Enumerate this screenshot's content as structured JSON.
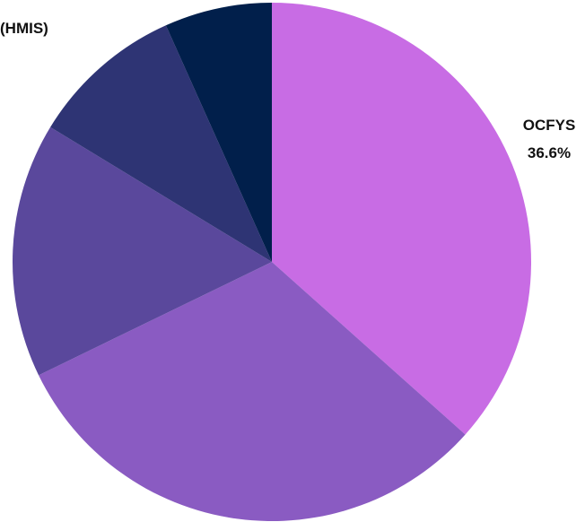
{
  "chart_data": {
    "type": "pie",
    "slices": [
      {
        "label": "OCFYS",
        "value_label": "36.6%",
        "value": 36.6,
        "color": "#c86ce4"
      },
      {
        "label": "",
        "value_label": "",
        "value": 31.2,
        "color": "#8a5bc2"
      },
      {
        "label": "",
        "value_label": "",
        "value": 15.9,
        "color": "#5a489c"
      },
      {
        "label": "",
        "value_label": "",
        "value": 9.6,
        "color": "#2e3474"
      },
      {
        "label": "(HMIS)",
        "value_label": "",
        "value": 6.7,
        "color": "#011f4b"
      }
    ],
    "start": "top (12 o'clock)",
    "direction": "clockwise"
  }
}
